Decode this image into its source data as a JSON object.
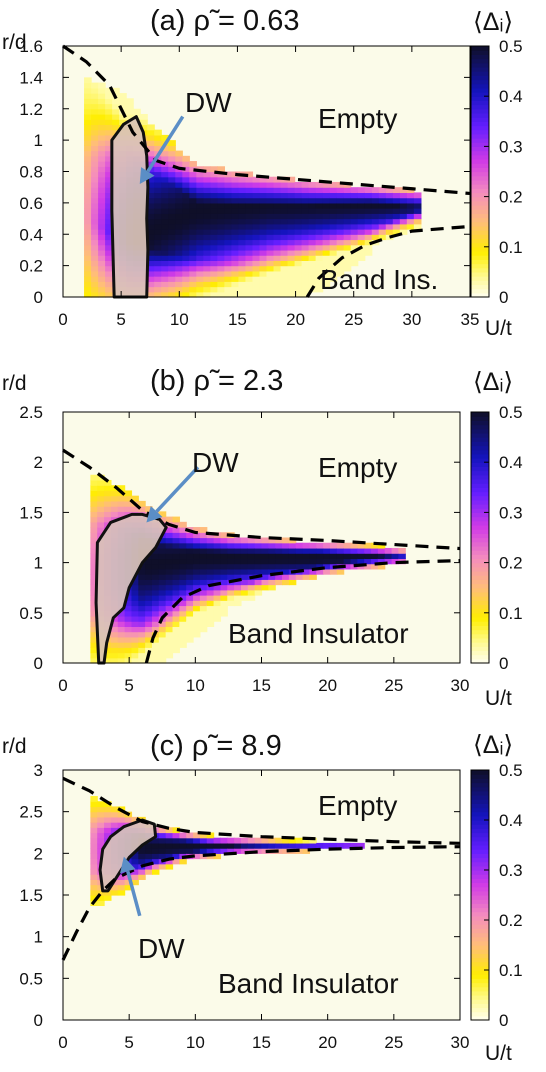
{
  "chart_data": [
    {
      "type": "heatmap",
      "title": "(a) ρ̃ = 0.63",
      "ylabel": "r/d",
      "xlabel": "U/t",
      "xlim": [
        0,
        35
      ],
      "ylim": [
        0,
        1.6
      ],
      "x_ticks": [
        "0",
        "5",
        "10",
        "15",
        "20",
        "25",
        "30",
        "35"
      ],
      "y_ticks": [
        "0",
        "0.2",
        "0.4",
        "0.6",
        "0.8",
        "1",
        "1.2",
        "1.4",
        "1.6"
      ],
      "colorbar_label": "⟨Δᵢ⟩",
      "colorbar_ticks": [
        "0",
        "0.1",
        "0.2",
        "0.3",
        "0.4",
        "0.5"
      ],
      "colorbar_range": [
        0,
        0.5
      ],
      "annotations": [
        "DW",
        "Empty",
        "Band Ins."
      ],
      "region": {
        "x_start": 2,
        "x_end": 30.5,
        "center": [
          0.28,
          0.32,
          0.45,
          0.55,
          0.58,
          0.6,
          0.6,
          0.6,
          0.6,
          0.6
        ],
        "width": [
          0.7,
          0.5,
          0.4,
          0.34,
          0.3,
          0.26,
          0.22,
          0.18,
          0.14,
          0.09
        ],
        "edge_max": [
          1.4,
          1.3,
          1.05,
          0.85,
          0.8,
          0.77,
          0.74,
          0.72,
          0.7,
          0.68
        ],
        "edge_min": [
          0,
          0,
          0,
          0,
          0,
          0,
          0,
          0.15,
          0.35,
          0.45
        ]
      },
      "empty_boundary": [
        [
          0,
          1.6
        ],
        [
          2,
          1.5
        ],
        [
          4,
          1.35
        ],
        [
          6,
          1.05
        ],
        [
          8,
          0.87
        ],
        [
          10,
          0.82
        ],
        [
          15,
          0.78
        ],
        [
          20,
          0.75
        ],
        [
          25,
          0.72
        ],
        [
          30,
          0.69
        ],
        [
          35,
          0.66
        ]
      ],
      "band_boundary": [
        [
          21,
          0
        ],
        [
          22,
          0.12
        ],
        [
          24,
          0.25
        ],
        [
          26,
          0.33
        ],
        [
          28,
          0.38
        ],
        [
          30,
          0.42
        ],
        [
          35,
          0.45
        ]
      ],
      "dw_outline": [
        [
          4.4,
          0
        ],
        [
          4.2,
          0.55
        ],
        [
          4.2,
          1.0
        ],
        [
          5.2,
          1.1
        ],
        [
          6.3,
          1.15
        ],
        [
          6.9,
          1.05
        ],
        [
          7.2,
          0.9
        ],
        [
          7.3,
          0.7
        ],
        [
          7.2,
          0.5
        ],
        [
          7.3,
          0.3
        ],
        [
          7.2,
          0
        ],
        [
          4.4,
          0
        ]
      ],
      "arrow": {
        "from": [
          10.3,
          1.15
        ],
        "to": [
          6.6,
          0.72
        ]
      }
    },
    {
      "type": "heatmap",
      "title": "(b) ρ̃ = 2.3",
      "ylabel": "r/d",
      "xlabel": "U/t",
      "xlim": [
        0,
        30
      ],
      "ylim": [
        0,
        2.5
      ],
      "x_ticks": [
        "0",
        "5",
        "10",
        "15",
        "20",
        "25",
        "30"
      ],
      "y_ticks": [
        "0",
        "0.5",
        "1",
        "1.5",
        "2",
        "2.5"
      ],
      "colorbar_label": "⟨Δᵢ⟩",
      "colorbar_ticks": [
        "0",
        "0.1",
        "0.2",
        "0.3",
        "0.4",
        "0.5"
      ],
      "colorbar_range": [
        0,
        0.5
      ],
      "annotations": [
        "DW",
        "Empty",
        "Band Insulator"
      ],
      "region": {
        "x_start": 2,
        "x_end": 26,
        "center": [
          0.9,
          0.95,
          1.0,
          1.05,
          1.05,
          1.05,
          1.05,
          1.05,
          1.05,
          1.05
        ],
        "width": [
          0.7,
          0.6,
          0.45,
          0.32,
          0.24,
          0.2,
          0.17,
          0.13,
          0.1,
          0.06
        ],
        "edge_max": [
          1.9,
          1.75,
          1.5,
          1.35,
          1.28,
          1.25,
          1.22,
          1.2,
          1.18,
          1.15
        ],
        "edge_min": [
          0,
          0,
          0,
          0.25,
          0.55,
          0.72,
          0.82,
          0.9,
          0.95,
          1.0
        ]
      },
      "empty_boundary": [
        [
          0,
          2.12
        ],
        [
          2,
          1.95
        ],
        [
          4,
          1.75
        ],
        [
          6,
          1.52
        ],
        [
          8,
          1.38
        ],
        [
          10,
          1.3
        ],
        [
          15,
          1.25
        ],
        [
          20,
          1.22
        ],
        [
          25,
          1.18
        ],
        [
          30,
          1.14
        ]
      ],
      "band_boundary": [
        [
          6.3,
          0
        ],
        [
          6.8,
          0.25
        ],
        [
          7.5,
          0.45
        ],
        [
          9,
          0.65
        ],
        [
          11,
          0.77
        ],
        [
          15,
          0.87
        ],
        [
          20,
          0.95
        ],
        [
          25,
          1.0
        ],
        [
          30,
          1.02
        ]
      ],
      "dw_outline": [
        [
          2.7,
          0
        ],
        [
          2.5,
          0.6
        ],
        [
          2.6,
          1.2
        ],
        [
          3.6,
          1.4
        ],
        [
          5.2,
          1.48
        ],
        [
          6.0,
          1.48
        ],
        [
          7.3,
          1.43
        ],
        [
          7.8,
          1.35
        ],
        [
          7.0,
          1.15
        ],
        [
          6.0,
          1.0
        ],
        [
          5.0,
          0.75
        ],
        [
          4.6,
          0.55
        ],
        [
          3.8,
          0.45
        ],
        [
          3.3,
          0.2
        ],
        [
          3.1,
          0
        ],
        [
          2.7,
          0
        ]
      ],
      "arrow": {
        "from": [
          10.2,
          1.95
        ],
        "to": [
          6.3,
          1.4
        ]
      }
    },
    {
      "type": "heatmap",
      "title": "(c) ρ̃ = 8.9",
      "ylabel": "r/d",
      "xlabel": "U/t",
      "xlim": [
        0,
        30
      ],
      "ylim": [
        0,
        3
      ],
      "x_ticks": [
        "0",
        "5",
        "10",
        "15",
        "20",
        "25",
        "30"
      ],
      "y_ticks": [
        "0",
        "0.5",
        "1",
        "1.5",
        "2",
        "2.5",
        "3"
      ],
      "colorbar_label": "⟨Δᵢ⟩",
      "colorbar_ticks": [
        "0",
        "0.1",
        "0.2",
        "0.3",
        "0.4",
        "0.5"
      ],
      "colorbar_range": [
        0,
        0.5
      ],
      "annotations": [
        "DW",
        "Empty",
        "Band Insulator"
      ],
      "region": {
        "x_start": 2,
        "x_end": 23,
        "center": [
          2.05,
          2.05,
          2.07,
          2.08,
          2.08,
          2.08,
          2.08,
          2.08,
          2.08,
          2.08
        ],
        "width": [
          0.6,
          0.4,
          0.22,
          0.14,
          0.1,
          0.08,
          0.06,
          0.05,
          0.04,
          0.03
        ],
        "edge_max": [
          2.7,
          2.55,
          2.35,
          2.27,
          2.22,
          2.2,
          2.18,
          2.16,
          2.15,
          2.14
        ],
        "edge_min": [
          1.35,
          1.5,
          1.75,
          1.9,
          1.96,
          2.0,
          2.02,
          2.03,
          2.04,
          2.05
        ]
      },
      "empty_boundary": [
        [
          0,
          2.9
        ],
        [
          2,
          2.75
        ],
        [
          4,
          2.55
        ],
        [
          6,
          2.38
        ],
        [
          8,
          2.3
        ],
        [
          10,
          2.25
        ],
        [
          15,
          2.2
        ],
        [
          20,
          2.17
        ],
        [
          25,
          2.14
        ],
        [
          30,
          2.12
        ]
      ],
      "band_boundary": [
        [
          0,
          0.72
        ],
        [
          1,
          1.05
        ],
        [
          2,
          1.35
        ],
        [
          3,
          1.55
        ],
        [
          4,
          1.7
        ],
        [
          6,
          1.85
        ],
        [
          8,
          1.93
        ],
        [
          10,
          1.97
        ],
        [
          15,
          2.02
        ],
        [
          20,
          2.05
        ],
        [
          25,
          2.07
        ],
        [
          30,
          2.08
        ]
      ],
      "dw_outline": [
        [
          3.0,
          1.55
        ],
        [
          2.8,
          1.8
        ],
        [
          3.0,
          2.05
        ],
        [
          3.6,
          2.2
        ],
        [
          4.6,
          2.32
        ],
        [
          6.0,
          2.4
        ],
        [
          6.9,
          2.35
        ],
        [
          7.0,
          2.2
        ],
        [
          6.0,
          2.1
        ],
        [
          5.0,
          1.95
        ],
        [
          4.0,
          1.7
        ],
        [
          3.4,
          1.55
        ],
        [
          3.0,
          1.55
        ]
      ],
      "arrow": {
        "from": [
          5.8,
          1.25
        ],
        "to": [
          4.6,
          1.96
        ]
      }
    }
  ]
}
